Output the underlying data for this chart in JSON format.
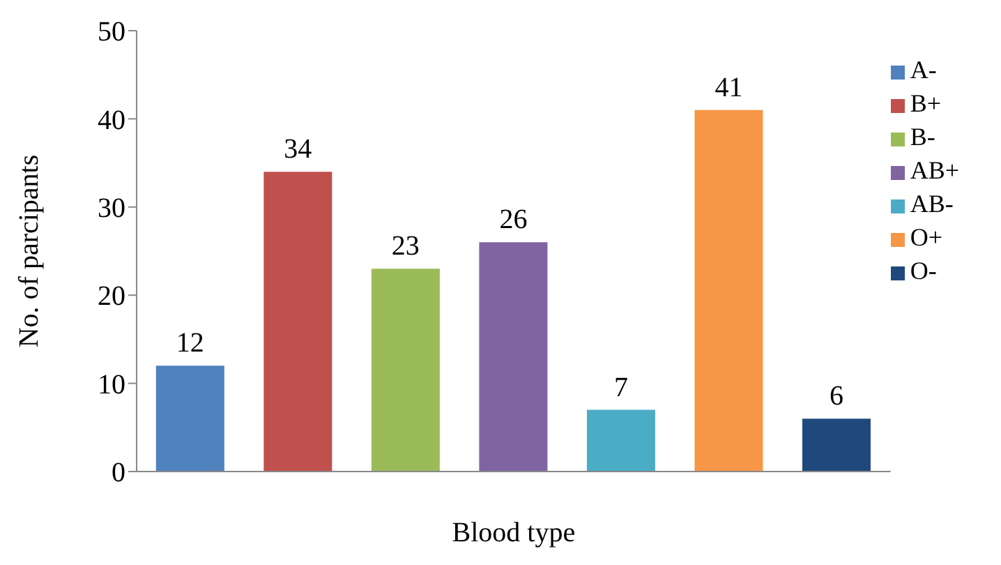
{
  "chart_data": {
    "type": "bar",
    "xlabel": "Blood type",
    "ylabel": "No. of parcipants",
    "categories": [
      null,
      null,
      null,
      null,
      null,
      null,
      null
    ],
    "series": [
      {
        "name": "A-",
        "color": "#4f81bd",
        "values": [
          12,
          null,
          null,
          null,
          null,
          null,
          null
        ]
      },
      {
        "name": "B+",
        "color": "#c0504d",
        "values": [
          null,
          34,
          null,
          null,
          null,
          null,
          null
        ]
      },
      {
        "name": "B-",
        "color": "#9bbb59",
        "values": [
          null,
          null,
          23,
          null,
          null,
          null,
          null
        ]
      },
      {
        "name": "AB+",
        "color": "#8064a2",
        "values": [
          null,
          null,
          null,
          26,
          null,
          null,
          null
        ]
      },
      {
        "name": "AB-",
        "color": "#4bacc6",
        "values": [
          null,
          null,
          null,
          null,
          7,
          null,
          null
        ]
      },
      {
        "name": "O+",
        "color": "#f79646",
        "values": [
          null,
          null,
          null,
          null,
          null,
          41,
          null
        ]
      },
      {
        "name": "O-",
        "color": "#1f497d",
        "values": [
          null,
          null,
          null,
          null,
          null,
          null,
          6
        ]
      }
    ],
    "stacked": true,
    "ylim": [
      0,
      50
    ],
    "yticks": [
      0,
      10,
      20,
      30,
      40,
      50
    ],
    "data_labels": true,
    "legend": "right"
  }
}
